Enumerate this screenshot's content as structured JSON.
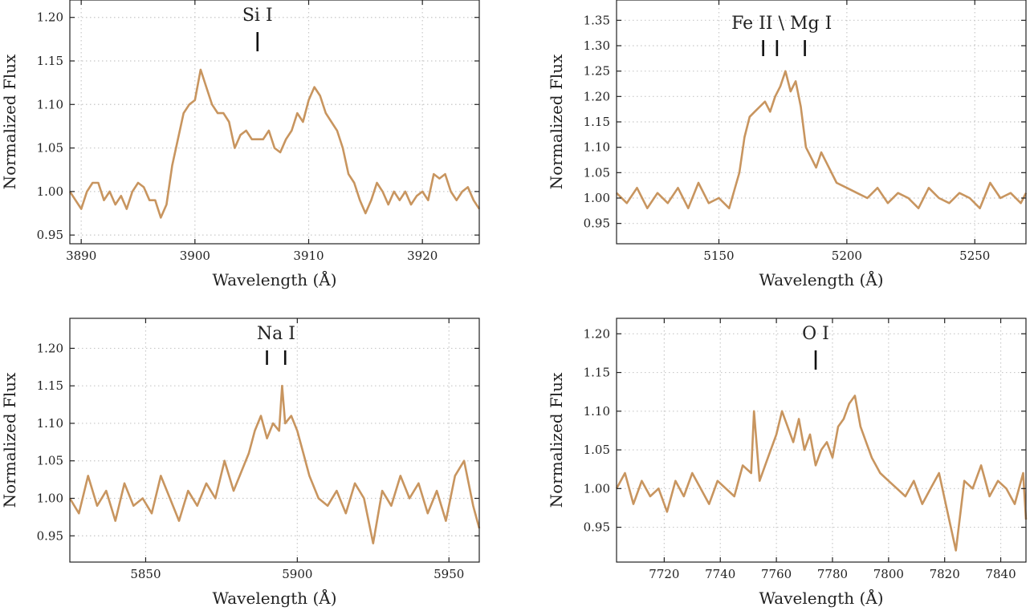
{
  "colors": {
    "spectrum": "#c8955f",
    "axes": "#222222",
    "grid": "#c8c8c8"
  },
  "chart_data": [
    {
      "type": "line",
      "xlabel": "Wavelength (Å)",
      "ylabel": "Normalized Flux",
      "xlim": [
        3889,
        3925
      ],
      "ylim": [
        0.94,
        1.22
      ],
      "xticks": [
        3890,
        3900,
        3910,
        3920
      ],
      "yticks": [
        0.95,
        1.0,
        1.05,
        1.1,
        1.15,
        1.2
      ],
      "ytick_labels": [
        "0.95",
        "1.00",
        "1.05",
        "1.10",
        "1.15",
        "1.20"
      ],
      "grid": true,
      "ion_label": "Si I",
      "line_marks": [
        3905.5
      ],
      "series": [
        {
          "color": "#c8955f",
          "x": [
            3889,
            3889.5,
            3890,
            3890.5,
            3891,
            3891.5,
            3892,
            3892.5,
            3893,
            3893.5,
            3894,
            3894.5,
            3895,
            3895.5,
            3896,
            3896.5,
            3897,
            3897.5,
            3898,
            3898.5,
            3899,
            3899.5,
            3900,
            3900.5,
            3901,
            3901.5,
            3902,
            3902.5,
            3903,
            3903.5,
            3904,
            3904.5,
            3905,
            3905.5,
            3906,
            3906.5,
            3907,
            3907.5,
            3908,
            3908.5,
            3909,
            3909.5,
            3910,
            3910.5,
            3911,
            3911.5,
            3912,
            3912.5,
            3913,
            3913.5,
            3914,
            3914.5,
            3915,
            3915.5,
            3916,
            3916.5,
            3917,
            3917.5,
            3918,
            3918.5,
            3919,
            3919.5,
            3920,
            3920.5,
            3921,
            3921.5,
            3922,
            3922.5,
            3923,
            3923.5,
            3924,
            3924.5,
            3925
          ],
          "y": [
            1.0,
            0.99,
            0.98,
            1.0,
            1.01,
            1.01,
            0.99,
            1.0,
            0.985,
            0.995,
            0.98,
            1.0,
            1.01,
            1.005,
            0.99,
            0.99,
            0.97,
            0.985,
            1.03,
            1.06,
            1.09,
            1.1,
            1.105,
            1.14,
            1.12,
            1.1,
            1.09,
            1.09,
            1.08,
            1.05,
            1.065,
            1.07,
            1.06,
            1.06,
            1.06,
            1.07,
            1.05,
            1.045,
            1.06,
            1.07,
            1.09,
            1.08,
            1.105,
            1.12,
            1.11,
            1.09,
            1.08,
            1.07,
            1.05,
            1.02,
            1.01,
            0.99,
            0.975,
            0.99,
            1.01,
            1.0,
            0.985,
            1.0,
            0.99,
            1.0,
            0.985,
            0.995,
            1.0,
            0.99,
            1.02,
            1.015,
            1.02,
            1.0,
            0.99,
            1.0,
            1.005,
            0.99,
            0.98
          ]
        }
      ]
    },
    {
      "type": "line",
      "xlabel": "Wavelength (Å)",
      "ylabel": "Normalized Flux",
      "xlim": [
        5110,
        5270
      ],
      "ylim": [
        0.91,
        1.39
      ],
      "xticks": [
        5150,
        5200,
        5250
      ],
      "yticks": [
        0.95,
        1.0,
        1.05,
        1.1,
        1.15,
        1.2,
        1.25,
        1.3,
        1.35
      ],
      "ytick_labels": [
        "0.95",
        "1.00",
        "1.05",
        "1.10",
        "1.15",
        "1.20",
        "1.25",
        "1.30",
        "1.35"
      ],
      "grid": true,
      "ion_label": "Fe II \\ Mg I",
      "line_marks": [
        5167.3,
        5172.7,
        5183.6
      ],
      "series": [
        {
          "color": "#c8955f",
          "x": [
            5110,
            5114,
            5118,
            5122,
            5126,
            5130,
            5134,
            5138,
            5142,
            5146,
            5150,
            5154,
            5158,
            5160,
            5162,
            5164,
            5166,
            5168,
            5170,
            5172,
            5174,
            5176,
            5178,
            5180,
            5182,
            5184,
            5186,
            5188,
            5190,
            5192,
            5196,
            5200,
            5204,
            5208,
            5212,
            5216,
            5220,
            5224,
            5228,
            5232,
            5236,
            5240,
            5244,
            5248,
            5252,
            5256,
            5260,
            5264,
            5268,
            5270
          ],
          "y": [
            1.01,
            0.99,
            1.02,
            0.98,
            1.01,
            0.99,
            1.02,
            0.98,
            1.03,
            0.99,
            1.0,
            0.98,
            1.05,
            1.12,
            1.16,
            1.17,
            1.18,
            1.19,
            1.17,
            1.2,
            1.22,
            1.25,
            1.21,
            1.23,
            1.18,
            1.1,
            1.08,
            1.06,
            1.09,
            1.07,
            1.03,
            1.02,
            1.01,
            1.0,
            1.02,
            0.99,
            1.01,
            1.0,
            0.98,
            1.02,
            1.0,
            0.99,
            1.01,
            1.0,
            0.98,
            1.03,
            1.0,
            1.01,
            0.99,
            1.01
          ]
        }
      ]
    },
    {
      "type": "line",
      "xlabel": "Wavelength (Å)",
      "ylabel": "Normalized Flux",
      "xlim": [
        5825,
        5960
      ],
      "ylim": [
        0.915,
        1.24
      ],
      "xticks": [
        5850,
        5900,
        5950
      ],
      "yticks": [
        0.95,
        1.0,
        1.05,
        1.1,
        1.15,
        1.2
      ],
      "ytick_labels": [
        "0.95",
        "1.00",
        "1.05",
        "1.10",
        "1.15",
        "1.20"
      ],
      "grid": true,
      "ion_label": "Na I",
      "line_marks": [
        5890,
        5896
      ],
      "series": [
        {
          "color": "#c8955f",
          "x": [
            5825,
            5828,
            5831,
            5834,
            5837,
            5840,
            5843,
            5846,
            5849,
            5852,
            5855,
            5858,
            5861,
            5864,
            5867,
            5870,
            5873,
            5876,
            5879,
            5882,
            5884,
            5886,
            5888,
            5890,
            5892,
            5894,
            5895,
            5896,
            5898,
            5900,
            5902,
            5904,
            5907,
            5910,
            5913,
            5916,
            5919,
            5922,
            5925,
            5928,
            5931,
            5934,
            5937,
            5940,
            5943,
            5946,
            5949,
            5952,
            5955,
            5958,
            5960
          ],
          "y": [
            1.0,
            0.98,
            1.03,
            0.99,
            1.01,
            0.97,
            1.02,
            0.99,
            1.0,
            0.98,
            1.03,
            1.0,
            0.97,
            1.01,
            0.99,
            1.02,
            1.0,
            1.05,
            1.01,
            1.04,
            1.06,
            1.09,
            1.11,
            1.08,
            1.1,
            1.09,
            1.15,
            1.1,
            1.11,
            1.09,
            1.06,
            1.03,
            1.0,
            0.99,
            1.01,
            0.98,
            1.02,
            1.0,
            0.94,
            1.01,
            0.99,
            1.03,
            1.0,
            1.02,
            0.98,
            1.01,
            0.97,
            1.03,
            1.05,
            0.99,
            0.96
          ]
        }
      ]
    },
    {
      "type": "line",
      "xlabel": "Wavelength (Å)",
      "ylabel": "Normalized Flux",
      "xlim": [
        7703,
        7849
      ],
      "ylim": [
        0.905,
        1.22
      ],
      "xticks": [
        7720,
        7740,
        7760,
        7780,
        7800,
        7820,
        7840
      ],
      "yticks": [
        0.95,
        1.0,
        1.05,
        1.1,
        1.15,
        1.2
      ],
      "ytick_labels": [
        "0.95",
        "1.00",
        "1.05",
        "1.10",
        "1.15",
        "1.20"
      ],
      "grid": true,
      "ion_label": "O I",
      "line_marks": [
        7774
      ],
      "series": [
        {
          "color": "#c8955f",
          "x": [
            7703,
            7706,
            7709,
            7712,
            7715,
            7718,
            7721,
            7724,
            7727,
            7730,
            7733,
            7736,
            7739,
            7742,
            7745,
            7748,
            7751,
            7752,
            7754,
            7757,
            7760,
            7762,
            7764,
            7766,
            7768,
            7770,
            7772,
            7774,
            7776,
            7778,
            7780,
            7782,
            7784,
            7786,
            7788,
            7790,
            7792,
            7794,
            7797,
            7800,
            7803,
            7806,
            7809,
            7812,
            7815,
            7818,
            7821,
            7824,
            7827,
            7830,
            7833,
            7836,
            7839,
            7842,
            7845,
            7848,
            7849
          ],
          "y": [
            1.0,
            1.02,
            0.98,
            1.01,
            0.99,
            1.0,
            0.97,
            1.01,
            0.99,
            1.02,
            1.0,
            0.98,
            1.01,
            1.0,
            0.99,
            1.03,
            1.02,
            1.1,
            1.01,
            1.04,
            1.07,
            1.1,
            1.08,
            1.06,
            1.09,
            1.05,
            1.07,
            1.03,
            1.05,
            1.06,
            1.04,
            1.08,
            1.09,
            1.11,
            1.12,
            1.08,
            1.06,
            1.04,
            1.02,
            1.01,
            1.0,
            0.99,
            1.01,
            0.98,
            1.0,
            1.02,
            0.97,
            0.92,
            1.01,
            1.0,
            1.03,
            0.99,
            1.01,
            1.0,
            0.98,
            1.02,
            0.96
          ]
        }
      ]
    }
  ]
}
